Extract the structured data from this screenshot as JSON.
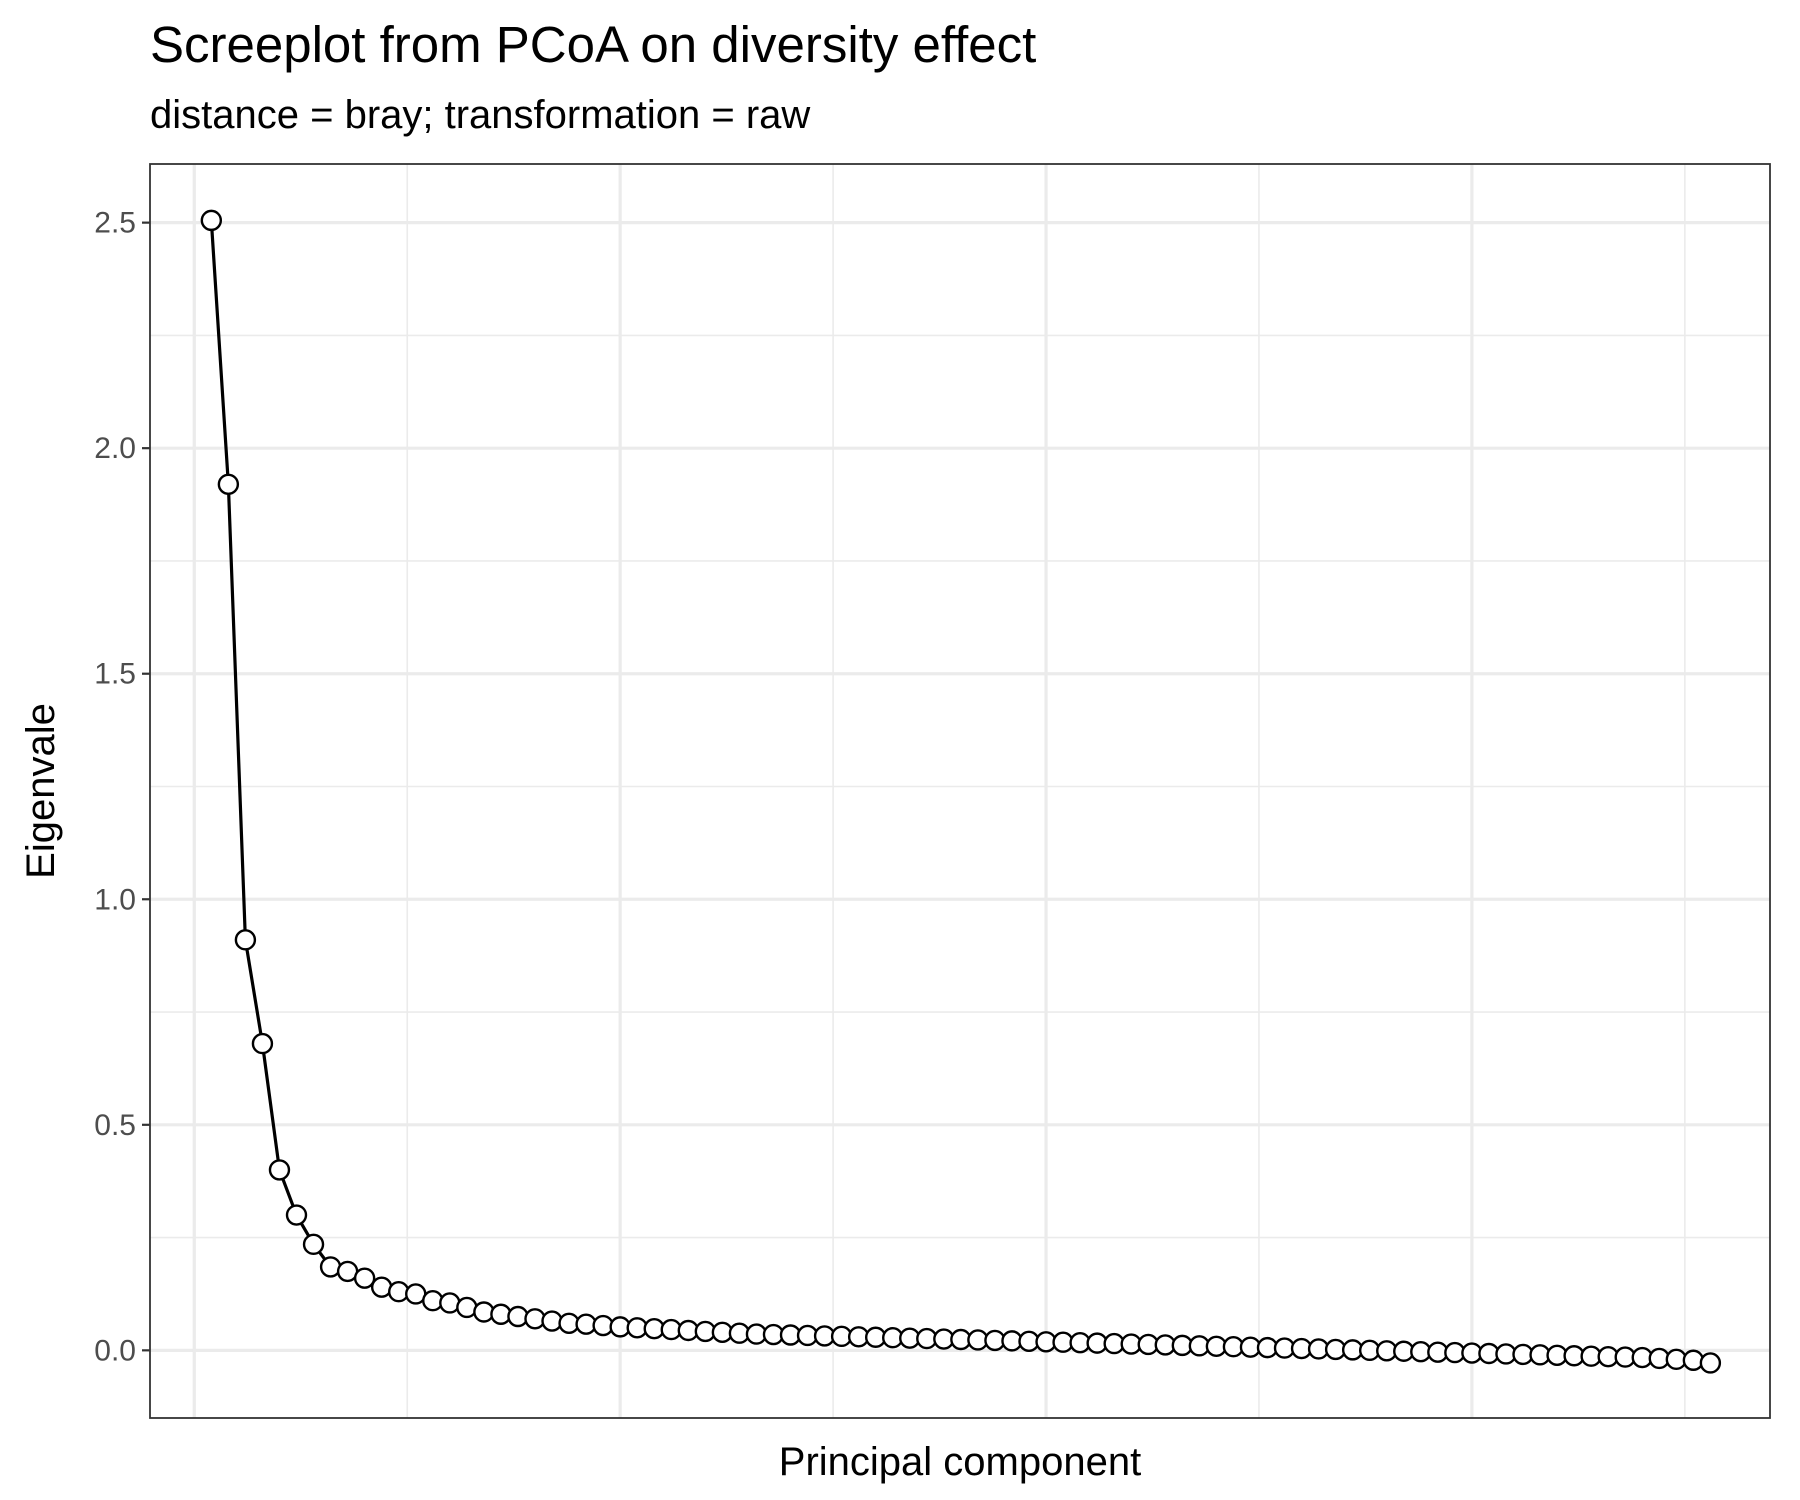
{
  "chart_data": {
    "type": "line",
    "title": "Screeplot from PCoA on diversity effect",
    "subtitle": "distance = bray; transformation = raw",
    "xlabel": "Principal component",
    "ylabel": "Eigenvale",
    "ylim": [
      -0.15,
      2.63
    ],
    "xlim": [
      -2.6,
      92.5
    ],
    "yticks": [
      0.0,
      0.5,
      1.0,
      1.5,
      2.0,
      2.5
    ],
    "ytick_labels": [
      "0.0",
      "0.5",
      "1.0",
      "1.5",
      "2.0",
      "2.5"
    ],
    "xticks_major": [
      0,
      25,
      50,
      75
    ],
    "xticks_minor": [
      12.5,
      37.5,
      62.5,
      87.5
    ],
    "grid": true,
    "marker": "open-circle",
    "x": [
      1,
      2,
      3,
      4,
      5,
      6,
      7,
      8,
      9,
      10,
      11,
      12,
      13,
      14,
      15,
      16,
      17,
      18,
      19,
      20,
      21,
      22,
      23,
      24,
      25,
      26,
      27,
      28,
      29,
      30,
      31,
      32,
      33,
      34,
      35,
      36,
      37,
      38,
      39,
      40,
      41,
      42,
      43,
      44,
      45,
      46,
      47,
      48,
      49,
      50,
      51,
      52,
      53,
      54,
      55,
      56,
      57,
      58,
      59,
      60,
      61,
      62,
      63,
      64,
      65,
      66,
      67,
      68,
      69,
      70,
      71,
      72,
      73,
      74,
      75,
      76,
      77,
      78,
      79,
      80,
      81,
      82,
      83,
      84,
      85,
      86,
      87,
      88,
      89
    ],
    "values": [
      2.505,
      1.92,
      0.91,
      0.68,
      0.4,
      0.3,
      0.235,
      0.185,
      0.175,
      0.16,
      0.14,
      0.13,
      0.125,
      0.11,
      0.105,
      0.095,
      0.085,
      0.08,
      0.075,
      0.07,
      0.065,
      0.06,
      0.058,
      0.055,
      0.052,
      0.05,
      0.048,
      0.046,
      0.044,
      0.042,
      0.04,
      0.038,
      0.036,
      0.035,
      0.034,
      0.033,
      0.032,
      0.031,
      0.03,
      0.029,
      0.028,
      0.027,
      0.026,
      0.025,
      0.024,
      0.023,
      0.022,
      0.021,
      0.02,
      0.019,
      0.018,
      0.017,
      0.016,
      0.015,
      0.014,
      0.013,
      0.012,
      0.011,
      0.01,
      0.009,
      0.008,
      0.007,
      0.006,
      0.005,
      0.004,
      0.003,
      0.002,
      0.001,
      0.0,
      -0.001,
      -0.002,
      -0.003,
      -0.004,
      -0.005,
      -0.006,
      -0.007,
      -0.008,
      -0.009,
      -0.01,
      -0.011,
      -0.012,
      -0.013,
      -0.014,
      -0.015,
      -0.016,
      -0.018,
      -0.02,
      -0.022,
      -0.028
    ]
  }
}
